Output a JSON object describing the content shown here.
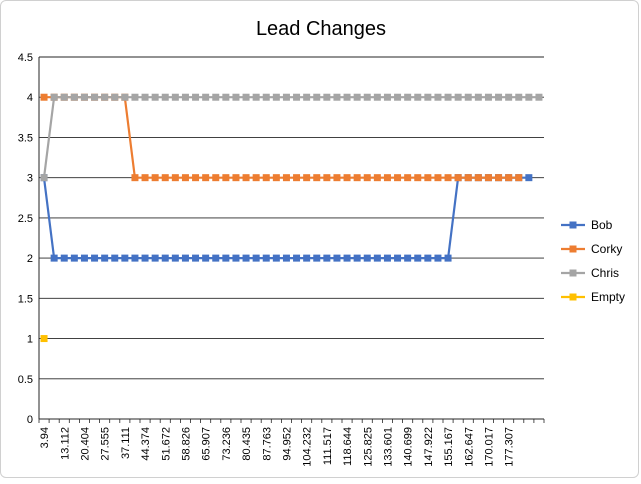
{
  "chart_data": {
    "type": "line",
    "title": "Lead Changes",
    "xlabel": "",
    "ylabel": "",
    "ylim": [
      0,
      4.5
    ],
    "y_ticks": [
      "0",
      "0.5",
      "1",
      "1.5",
      "2",
      "2.5",
      "3",
      "3.5",
      "4",
      "4.5"
    ],
    "x_tick_labels": [
      "3.94",
      "13.112",
      "20.404",
      "27.555",
      "37.111",
      "44.374",
      "51.672",
      "58.826",
      "65.907",
      "73.236",
      "80.435",
      "87.763",
      "94.952",
      "104.232",
      "111.517",
      "118.644",
      "125.825",
      "133.601",
      "140.699",
      "147.922",
      "155.167",
      "162.647",
      "170.017",
      "177.307"
    ],
    "grid": "horizontal",
    "legend_position": "right",
    "category_count": 50,
    "series": [
      {
        "name": "Bob",
        "color": "#4472C4",
        "start_index": 0,
        "values": [
          3,
          2,
          2,
          2,
          2,
          2,
          2,
          2,
          2,
          2,
          2,
          2,
          2,
          2,
          2,
          2,
          2,
          2,
          2,
          2,
          2,
          2,
          2,
          2,
          2,
          2,
          2,
          2,
          2,
          2,
          2,
          2,
          2,
          2,
          2,
          2,
          2,
          2,
          2,
          2,
          2,
          3,
          3,
          3,
          3,
          3,
          3,
          3,
          3
        ]
      },
      {
        "name": "Corky",
        "color": "#ED7D31",
        "start_index": 0,
        "values": [
          4,
          4,
          4,
          4,
          4,
          4,
          4,
          4,
          4,
          3,
          3,
          3,
          3,
          3,
          3,
          3,
          3,
          3,
          3,
          3,
          3,
          3,
          3,
          3,
          3,
          3,
          3,
          3,
          3,
          3,
          3,
          3,
          3,
          3,
          3,
          3,
          3,
          3,
          3,
          3,
          3,
          3,
          3,
          3,
          3,
          3,
          3,
          3
        ]
      },
      {
        "name": "Chris",
        "color": "#A5A5A5",
        "start_index": 0,
        "values": [
          3,
          4,
          4,
          4,
          4,
          4,
          4,
          4,
          4,
          4,
          4,
          4,
          4,
          4,
          4,
          4,
          4,
          4,
          4,
          4,
          4,
          4,
          4,
          4,
          4,
          4,
          4,
          4,
          4,
          4,
          4,
          4,
          4,
          4,
          4,
          4,
          4,
          4,
          4,
          4,
          4,
          4,
          4,
          4,
          4,
          4,
          4,
          4,
          4,
          4
        ]
      },
      {
        "name": "Empty",
        "color": "#FFC000",
        "start_index": 0,
        "values": [
          1
        ]
      }
    ]
  }
}
